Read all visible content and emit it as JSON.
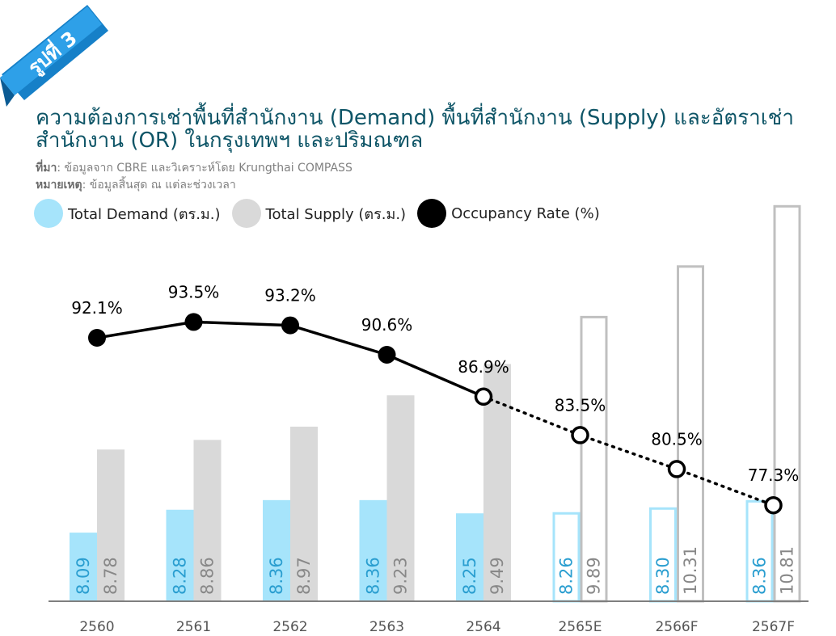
{
  "badge": {
    "label": "รูปที่ 3",
    "color": "#1f8ad8"
  },
  "title_lines": [
    "ความต้องการเช่าพื้นที่สำนักงาน (Demand) พื้นที่สำนักงาน (Supply) และอัตราเช่า",
    "สำนักงาน (OR) ในกรุงเทพฯ และปริมณฑล"
  ],
  "source": {
    "label": "ที่มา",
    "text": ": ข้อมูลจาก CBRE และวิเคราะห์โดย Krungthai COMPASS"
  },
  "note": {
    "label": "หมายเหตุ",
    "text": ": ข้อมูลสิ้นสุด ณ แต่ละช่วงเวลา"
  },
  "legend": [
    {
      "label": "Total Demand (ตร.ม.)",
      "color": "#a6e4fb",
      "icon": "circle-swatch"
    },
    {
      "label": "Total Supply (ตร.ม.)",
      "color": "#d9d9d9",
      "icon": "circle-swatch"
    },
    {
      "label": "Occupancy Rate (%)",
      "color": "#000000",
      "icon": "circle-swatch"
    }
  ],
  "chart_data": {
    "type": "bar",
    "categories": [
      "2560",
      "2561",
      "2562",
      "2563",
      "2564",
      "2565E",
      "2566F",
      "2567F"
    ],
    "series": [
      {
        "name": "Total Demand (ตร.ม.)",
        "values": [
          8.09,
          8.28,
          8.36,
          8.36,
          8.25,
          8.26,
          8.3,
          8.36
        ],
        "labels": [
          "8.09",
          "8.28",
          "8.36",
          "8.36",
          "8.25",
          "8.26",
          "8.30",
          "8.36"
        ],
        "color": "#a6e4fb"
      },
      {
        "name": "Total Supply (ตร.ม.)",
        "values": [
          8.78,
          8.86,
          8.97,
          9.23,
          9.49,
          9.89,
          10.31,
          10.81
        ],
        "labels": [
          "8.78",
          "8.86",
          "8.97",
          "9.23",
          "9.49",
          "9.89",
          "10.31",
          "10.81"
        ],
        "color": "#d9d9d9"
      },
      {
        "name": "Occupancy Rate (%)",
        "type": "line",
        "values": [
          92.1,
          93.5,
          93.2,
          90.6,
          86.9,
          83.5,
          80.5,
          77.3
        ],
        "labels": [
          "92.1%",
          "93.5%",
          "93.2%",
          "90.6%",
          "86.9%",
          "83.5%",
          "80.5%",
          "77.3%"
        ],
        "color": "#000000"
      }
    ],
    "forecast_start_index": 5,
    "forecast_style": "outlined bars, dotted line, hollow markers",
    "axis_color": "#7f7f7f",
    "grid": false
  }
}
